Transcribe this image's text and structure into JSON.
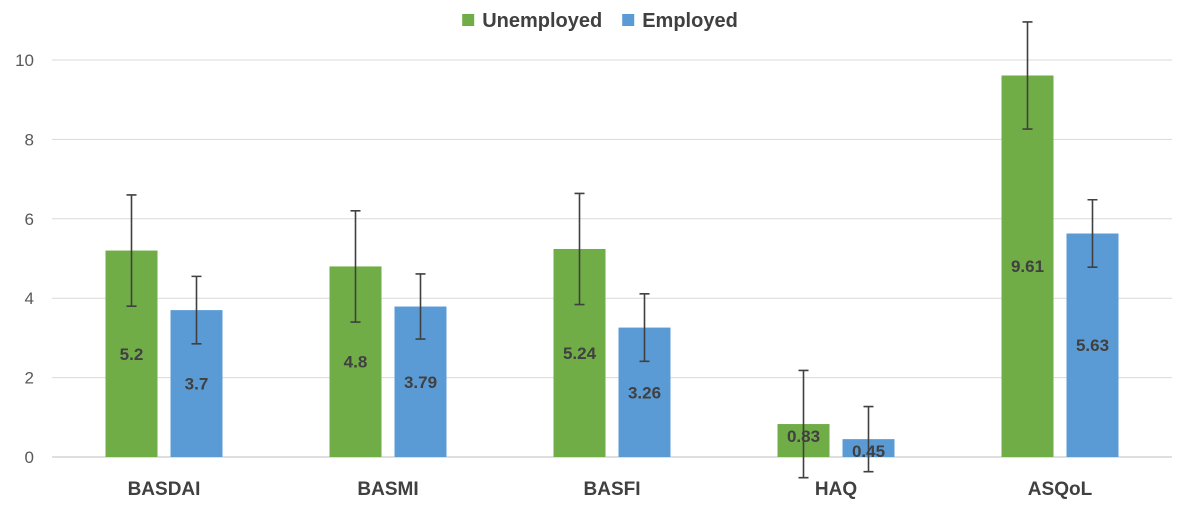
{
  "chart_data": {
    "type": "bar",
    "categories": [
      "BASDAI",
      "BASMI",
      "BASFI",
      "HAQ",
      "ASQoL"
    ],
    "series": [
      {
        "name": "Unemployed",
        "color": "#70ad47",
        "values": [
          5.2,
          4.8,
          5.24,
          0.83,
          9.61
        ],
        "labels": [
          "5.2",
          "4.8",
          "5.24",
          "0.83",
          "9.61"
        ],
        "error": [
          1.4,
          1.4,
          1.4,
          1.35,
          1.35
        ]
      },
      {
        "name": "Employed",
        "color": "#5b9bd5",
        "values": [
          3.7,
          3.79,
          3.26,
          0.45,
          5.63
        ],
        "labels": [
          "3.7",
          "3.79",
          "3.26",
          "0.45",
          "5.63"
        ],
        "error": [
          0.85,
          0.82,
          0.85,
          0.82,
          0.85
        ]
      }
    ],
    "title": "",
    "xlabel": "",
    "ylabel": "",
    "ylim": [
      0,
      10
    ],
    "yticks": [
      0,
      2,
      4,
      6,
      8,
      10
    ],
    "grid": true,
    "legend": "top-center"
  }
}
